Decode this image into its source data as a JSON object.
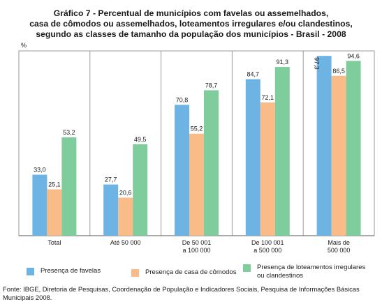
{
  "title_lines": [
    "Gráfico 7 - Percentual de municípios com favelas ou assemelhados,",
    "casa de cômodos ou assemelhados, loteamentos irregulares e/ou clandestinos,",
    "segundo as classes de tamanho da população dos municípios - Brasil - 2008"
  ],
  "unit_label": "%",
  "chart_data": {
    "type": "bar",
    "title": "Gráfico 7 - Percentual de municípios com favelas ou assemelhados, casa de cômodos ou assemelhados, loteamentos irregulares e/ou clandestinos, segundo as classes de tamanho da população dos municípios - Brasil - 2008",
    "ylabel": "%",
    "ylim": [
      0,
      100
    ],
    "grid": false,
    "legend_position": "bottom",
    "categories": [
      [
        "Total"
      ],
      [
        "Até 50 000"
      ],
      [
        "De 50 001",
        "a 100 000"
      ],
      [
        "De 100 001",
        "a 500 000"
      ],
      [
        "Mais de",
        "500 000"
      ]
    ],
    "series": [
      {
        "name": "Presença de favelas",
        "color": "#6db4e4",
        "values": [
          33.0,
          27.7,
          70.8,
          84.7,
          97.3
        ],
        "labels": [
          "33,0",
          "27,7",
          "70,8",
          "84,7",
          "97,3"
        ]
      },
      {
        "name": "Presença de casa de cômodos",
        "color": "#f9bc89",
        "values": [
          25.1,
          20.6,
          55.2,
          72.1,
          86.5
        ],
        "labels": [
          "25,1",
          "20,6",
          "55,2",
          "72,1",
          "86,5"
        ]
      },
      {
        "name": "Presença de loteamentos irregulares ou clandestinos",
        "color": "#7fcd9c",
        "values": [
          53.2,
          49.5,
          78.7,
          91.3,
          94.6
        ],
        "labels": [
          "53,2",
          "49,5",
          "78,7",
          "91,3",
          "94,6"
        ]
      }
    ]
  },
  "legend": [
    {
      "lines": [
        "Presença de favelas"
      ],
      "color": "#6db4e4"
    },
    {
      "lines": [
        "Presença de casa de cômodos"
      ],
      "color": "#f9bc89"
    },
    {
      "lines": [
        "Presença de loteamentos irregulares",
        "ou clandestinos"
      ],
      "color": "#7fcd9c"
    }
  ],
  "source": "Fonte: IBGE, Diretoria de Pesquisas, Coordenação de População e Indicadores Sociais, Pesquisa de Informações Básicas Municipais 2008."
}
